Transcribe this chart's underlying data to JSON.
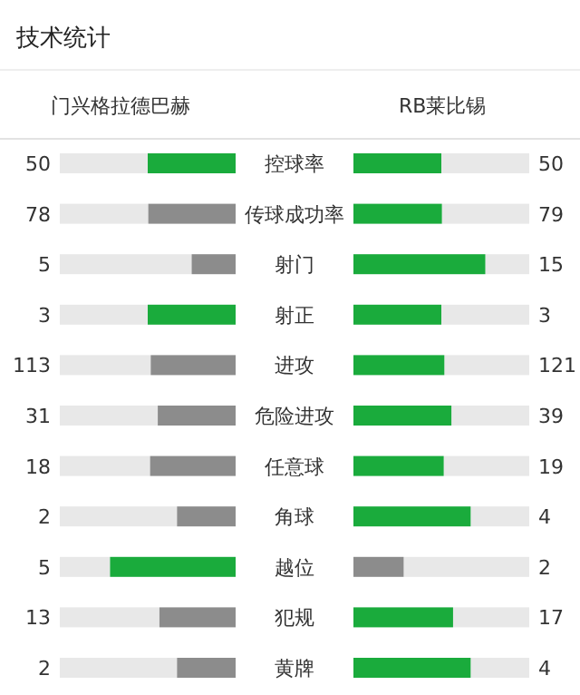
{
  "chart_data": {
    "type": "other",
    "title": "技术统计",
    "data_labels": true,
    "categories": [
      "控球率",
      "传球成功率",
      "射门",
      "射正",
      "进攻",
      "危险进攻",
      "任意球",
      "角球",
      "越位",
      "犯规",
      "黄牌"
    ],
    "series": [
      {
        "name": "门兴格拉德巴赫",
        "values": [
          50,
          78,
          5,
          3,
          113,
          31,
          18,
          2,
          5,
          13,
          2
        ],
        "colors": [
          "#1aab3c",
          "#8c8c8c",
          "#8c8c8c",
          "#1aab3c",
          "#8c8c8c",
          "#8c8c8c",
          "#8c8c8c",
          "#8c8c8c",
          "#1aab3c",
          "#8c8c8c",
          "#8c8c8c"
        ]
      },
      {
        "name": "RB莱比锡",
        "values": [
          50,
          79,
          15,
          3,
          121,
          39,
          19,
          4,
          2,
          17,
          4
        ],
        "colors": [
          "#1aab3c",
          "#1aab3c",
          "#1aab3c",
          "#1aab3c",
          "#1aab3c",
          "#1aab3c",
          "#1aab3c",
          "#1aab3c",
          "#8c8c8c",
          "#1aab3c",
          "#1aab3c"
        ]
      }
    ]
  }
}
